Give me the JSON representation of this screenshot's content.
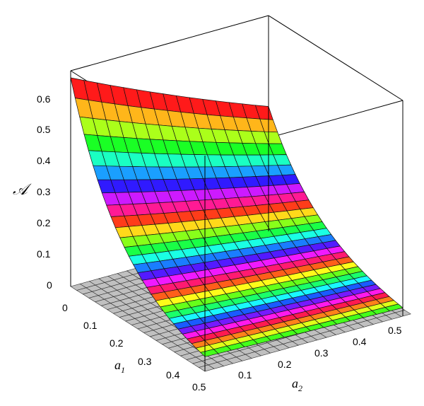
{
  "chart_data": {
    "type": "surface",
    "zlabel": "𝒜",
    "xlabel": "a",
    "xlabel_sub": "1",
    "ylabel": "a",
    "ylabel_sub": "2",
    "x_ticks": [
      "0",
      "0.1",
      "0.2",
      "0.3",
      "0.4",
      "0.5"
    ],
    "y_ticks": [
      "0.1",
      "0.2",
      "0.3",
      "0.4",
      "0.5"
    ],
    "z_ticks": [
      "0",
      "0.1",
      "0.2",
      "0.3",
      "0.4",
      "0.5",
      "0.6"
    ],
    "xlim": [
      0,
      0.5
    ],
    "ylim": [
      0,
      0.5
    ],
    "zlim": [
      0,
      0.68
    ],
    "grid_floor": true,
    "surface": {
      "description_values": {
        "a1": [
          0,
          0.1,
          0.2,
          0.3,
          0.4,
          0.5
        ],
        "z_at_a2_0": [
          0.68,
          0.42,
          0.24,
          0.11,
          0.03,
          0.01
        ],
        "z_at_a2_0.5": [
          0.38,
          0.22,
          0.12,
          0.05,
          0.01,
          0.0
        ]
      }
    },
    "colors": {
      "floor": "#c0c0c0",
      "gridline": "#222222",
      "box": "#000000"
    }
  }
}
